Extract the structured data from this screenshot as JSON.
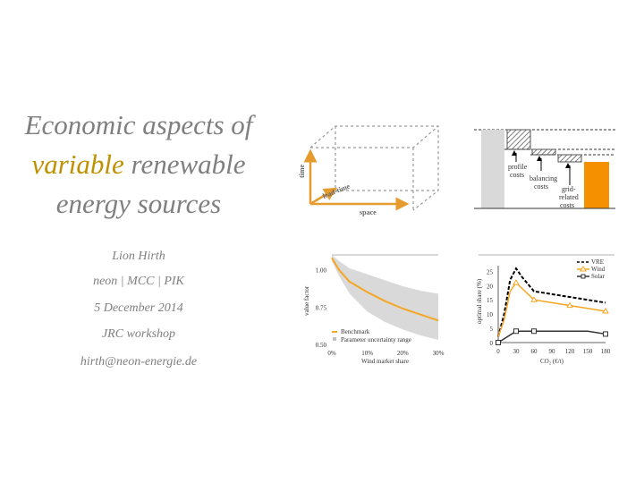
{
  "title": {
    "line1": "Economic aspects of",
    "accent": "variable",
    "line2_rest": " renewable",
    "line3": "energy sources"
  },
  "author": "Lion Hirth",
  "affiliations": "neon  |  MCC  |  PIK",
  "date": "5 December 2014",
  "event": "JRC workshop",
  "email": "hirth@neon-energie.de",
  "cube_diagram": {
    "axis_time": "time",
    "axis_lead_time": "lead-time",
    "axis_space": "space"
  },
  "cost_diagram": {
    "profile": "profile costs",
    "balancing": "balancing costs",
    "grid": "grid-related costs"
  },
  "chart_data": [
    {
      "type": "line",
      "ylabel": "value factor",
      "xlabel": "Wind market share",
      "x_ticks": [
        "0%",
        "10%",
        "20%",
        "30%"
      ],
      "y_ticks": [
        "0.50",
        "0.75",
        "1.00"
      ],
      "ylim": [
        0.5,
        1.1
      ],
      "xlim": [
        0,
        30
      ],
      "series": [
        {
          "name": "Benchmark",
          "color": "#f5a623",
          "x": [
            0,
            2,
            5,
            10,
            15,
            20,
            25,
            30
          ],
          "y": [
            1.08,
            1.0,
            0.92,
            0.85,
            0.79,
            0.74,
            0.7,
            0.66
          ]
        }
      ],
      "band": {
        "name": "Parameter uncertainty range",
        "color": "#d9d9d9",
        "x": [
          0,
          2,
          5,
          10,
          15,
          20,
          25,
          30
        ],
        "upper": [
          1.1,
          1.06,
          1.01,
          0.97,
          0.93,
          0.89,
          0.86,
          0.84
        ],
        "lower": [
          1.06,
          0.96,
          0.84,
          0.72,
          0.65,
          0.6,
          0.56,
          0.53
        ]
      }
    },
    {
      "type": "line",
      "ylabel": "optimal share (%)",
      "xlabel": "CO₂ (€/t)",
      "x_ticks": [
        "0",
        "30",
        "60",
        "90",
        "120",
        "150",
        "180"
      ],
      "y_ticks": [
        "0",
        "5",
        "10",
        "15",
        "20",
        "25"
      ],
      "xlim": [
        0,
        180
      ],
      "ylim": [
        0,
        27
      ],
      "series": [
        {
          "name": "VRE",
          "color": "#000000",
          "dash": true,
          "x": [
            0,
            10,
            20,
            30,
            40,
            60,
            90,
            120,
            150,
            180
          ],
          "y": [
            2,
            10,
            22,
            26,
            23,
            18,
            17,
            16,
            15,
            14
          ]
        },
        {
          "name": "Wind",
          "color": "#f5a623",
          "marker": "triangle",
          "x": [
            0,
            10,
            20,
            30,
            40,
            60,
            90,
            120,
            150,
            180
          ],
          "y": [
            2,
            8,
            18,
            21,
            19,
            15,
            14,
            13,
            12,
            11
          ]
        },
        {
          "name": "Solar",
          "color": "#333333",
          "marker": "square",
          "x": [
            0,
            15,
            30,
            60,
            90,
            120,
            150,
            180
          ],
          "y": [
            0,
            2,
            4,
            4,
            4,
            4,
            4,
            3
          ]
        }
      ]
    }
  ]
}
